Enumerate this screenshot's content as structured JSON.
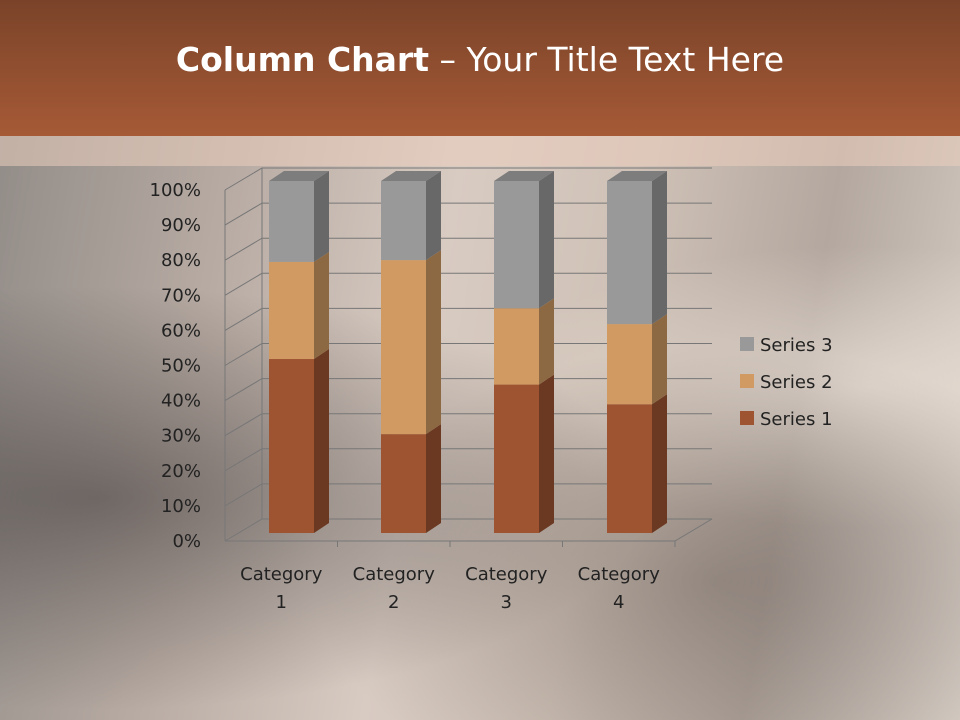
{
  "slide": {
    "title_bold": "Column Chart",
    "title_rest": " – Your Title Text Here"
  },
  "chart_data": {
    "type": "bar",
    "subtype": "100% stacked 3-D column",
    "categories": [
      "Category 1",
      "Category 2",
      "Category 3",
      "Category 4"
    ],
    "category_lines": [
      [
        "Category",
        "1"
      ],
      [
        "Category",
        "2"
      ],
      [
        "Category",
        "3"
      ],
      [
        "Category",
        "4"
      ]
    ],
    "series": [
      {
        "name": "Series 1",
        "values": [
          4.3,
          2.5,
          3.5,
          4.5
        ],
        "color": "#9E5331"
      },
      {
        "name": "Series 2",
        "values": [
          2.4,
          4.4,
          1.8,
          2.8
        ],
        "color": "#D09A62"
      },
      {
        "name": "Series 3",
        "values": [
          2,
          2,
          3,
          5
        ],
        "color": "#999999"
      }
    ],
    "yticks": [
      "0%",
      "10%",
      "20%",
      "30%",
      "40%",
      "50%",
      "60%",
      "70%",
      "80%",
      "90%",
      "100%"
    ],
    "ylim": [
      0,
      100
    ],
    "grid": true,
    "legend": "right"
  }
}
